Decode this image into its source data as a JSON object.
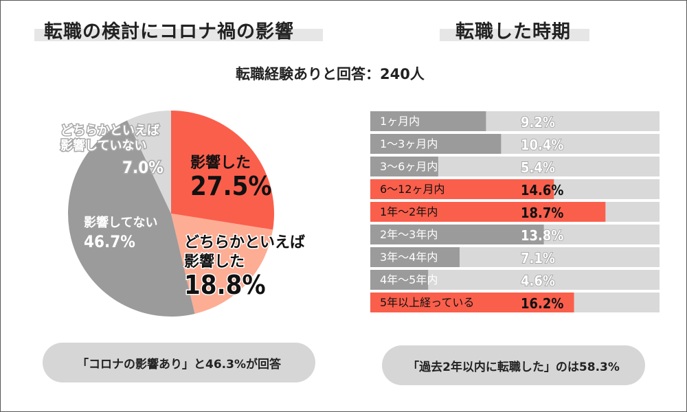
{
  "left_title": "転職の検討にコロナ禍の影響",
  "right_title": "転職した時期",
  "respondents": "転職経験ありと回答：240人",
  "left_summary": "「コロナの影響あり」と46.3%が回答",
  "right_summary": "「過去2年以内に転職した」のは58.3%",
  "colors": {
    "highlight": "#fa5f4c",
    "highlight_light": "#fdad94",
    "gray": "#9b9b9b",
    "gray_light": "#d9d9d9",
    "track": "#d9d9d9"
  },
  "chart_data": [
    {
      "type": "pie",
      "title": "転職の検討にコロナ禍の影響",
      "slices": [
        {
          "label_lines": [
            "影響した"
          ],
          "value_text": "27.5%",
          "value": 27.5,
          "color": "#fa5f4c"
        },
        {
          "label_lines": [
            "どちらかといえば",
            "影響した"
          ],
          "value_text": "18.8%",
          "value": 18.8,
          "color": "#fdad94"
        },
        {
          "label_lines": [
            "影響してない"
          ],
          "value_text": "46.7%",
          "value": 46.7,
          "color": "#9b9b9b"
        },
        {
          "label_lines": [
            "どちらかといえば",
            "影響していない"
          ],
          "value_text": "7.0%",
          "value": 7.0,
          "color": "#d9d9d9"
        }
      ]
    },
    {
      "type": "bar",
      "orientation": "horizontal",
      "title": "転職した時期",
      "xlim": [
        0,
        23
      ],
      "categories": [
        "1ヶ月内",
        "1〜3ヶ月内",
        "3〜6ヶ月内",
        "6〜12ヶ月内",
        "1年〜2年内",
        "2年〜3年内",
        "3年〜4年内",
        "4年〜5年内",
        "5年以上経っている"
      ],
      "value_texts": [
        "9.2%",
        "10.4%",
        "5.4%",
        "14.6%",
        "18.7%",
        "13.8%",
        "7.1%",
        "4.6%",
        "16.2%"
      ],
      "values": [
        9.2,
        10.4,
        5.4,
        14.6,
        18.7,
        13.8,
        7.1,
        4.6,
        16.2
      ],
      "highlight": [
        false,
        false,
        false,
        true,
        true,
        false,
        false,
        false,
        true
      ]
    }
  ]
}
